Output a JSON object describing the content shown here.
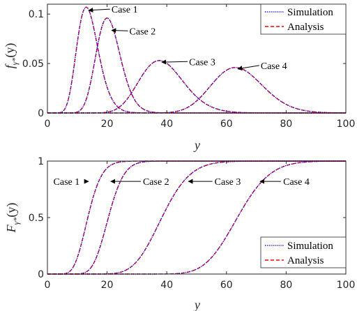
{
  "chart_data": [
    {
      "type": "line",
      "ylabel": "f_{γ*}(y)",
      "xlabel": "y",
      "xlim": [
        0,
        100
      ],
      "ylim": [
        0,
        0.11
      ],
      "xticks": [
        0,
        20,
        40,
        60,
        80,
        100
      ],
      "yticks": [
        0,
        0.05,
        0.1
      ],
      "ytick_labels": [
        "0",
        "0.05",
        "0.1"
      ],
      "grid": false,
      "legend": {
        "position": "top-right",
        "entries": [
          "Simulation",
          "Analysis"
        ]
      },
      "series": [
        {
          "name": "Simulation",
          "color": "#0000ff",
          "style": "dotted"
        },
        {
          "name": "Analysis",
          "color": "#ff0000",
          "style": "dashed"
        }
      ],
      "curves": [
        {
          "label": "Case 1",
          "peak_x": 13,
          "peak_y": 0.107,
          "annotation_x": 21,
          "annotation_y": 0.105
        },
        {
          "label": "Case 2",
          "peak_x": 20,
          "peak_y": 0.096,
          "annotation_x": 27,
          "annotation_y": 0.083
        },
        {
          "label": "Case 3",
          "peak_x": 37.5,
          "peak_y": 0.053,
          "annotation_x": 47,
          "annotation_y": 0.052
        },
        {
          "label": "Case 4",
          "peak_x": 63,
          "peak_y": 0.046,
          "annotation_x": 71,
          "annotation_y": 0.048
        }
      ]
    },
    {
      "type": "line",
      "ylabel": "F_{γ*}(y)",
      "xlabel": "y",
      "xlim": [
        0,
        100
      ],
      "ylim": [
        0,
        1
      ],
      "xticks": [
        0,
        20,
        40,
        60,
        80,
        100
      ],
      "yticks": [
        0,
        0.5,
        1
      ],
      "ytick_labels": [
        "0",
        "0.5",
        "1"
      ],
      "grid": false,
      "legend": {
        "position": "bottom-right",
        "entries": [
          "Simulation",
          "Analysis"
        ]
      },
      "series": [
        {
          "name": "Simulation",
          "color": "#0000ff",
          "style": "dotted"
        },
        {
          "name": "Analysis",
          "color": "#ff0000",
          "style": "dashed"
        }
      ],
      "curves": [
        {
          "label": "Case 1",
          "median_x": 13,
          "annotation_point": [
            14,
            0.82
          ],
          "annotation_text_x": 2
        },
        {
          "label": "Case 2",
          "median_x": 20,
          "annotation_point": [
            21,
            0.82
          ],
          "annotation_text_x": 32
        },
        {
          "label": "Case 3",
          "median_x": 37.5,
          "annotation_point": [
            47,
            0.82
          ],
          "annotation_text_x": 56
        },
        {
          "label": "Case 4",
          "median_x": 63,
          "annotation_point": [
            71,
            0.82
          ],
          "annotation_text_x": 79
        }
      ]
    }
  ],
  "labels": {
    "top_ylabel_main": "f",
    "top_ylabel_sub": "γ*",
    "top_ylabel_tail": "(y)",
    "bottom_ylabel_main": "F",
    "bottom_ylabel_sub": "γ*",
    "bottom_ylabel_tail": "(y)",
    "xlabel": "y",
    "legend_sim": "Simulation",
    "legend_ana": "Analysis"
  },
  "colors": {
    "simulation": "#0000ff",
    "analysis": "#ff0000",
    "axes": "#262626"
  }
}
